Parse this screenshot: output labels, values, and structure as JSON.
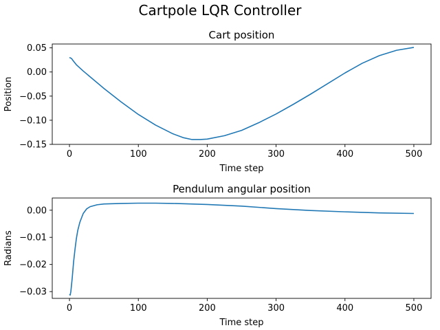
{
  "title": "Cartpole LQR Controller",
  "line_color": "#1f77b4",
  "chart_data": [
    {
      "type": "line",
      "title": "Cart position",
      "xlabel": "Time step",
      "ylabel": "Position",
      "xlim": [
        -25,
        525
      ],
      "ylim": [
        -0.15,
        0.058
      ],
      "xticks": [
        0,
        100,
        200,
        300,
        400,
        500
      ],
      "xtick_labels": [
        "0",
        "100",
        "200",
        "300",
        "400",
        "500"
      ],
      "yticks": [
        0.05,
        0.0,
        -0.05,
        -0.1,
        -0.15
      ],
      "ytick_labels": [
        "0.05",
        "0.00",
        "−0.05",
        "−0.10",
        "−0.15"
      ],
      "grid": false,
      "series": [
        {
          "x": [
            0,
            3,
            5,
            10,
            20,
            30,
            50,
            75,
            100,
            125,
            150,
            165,
            178,
            190,
            200,
            225,
            250,
            275,
            300,
            325,
            350,
            375,
            400,
            425,
            450,
            475,
            500
          ],
          "y": [
            0.03,
            0.028,
            0.024,
            0.015,
            0.002,
            -0.01,
            -0.034,
            -0.062,
            -0.088,
            -0.11,
            -0.128,
            -0.136,
            -0.14,
            -0.14,
            -0.139,
            -0.132,
            -0.121,
            -0.105,
            -0.087,
            -0.067,
            -0.046,
            -0.024,
            -0.002,
            0.018,
            0.034,
            0.045,
            0.051
          ]
        }
      ]
    },
    {
      "type": "line",
      "title": "Pendulum angular position",
      "xlabel": "Time step",
      "ylabel": "Radians",
      "xlim": [
        -25,
        525
      ],
      "ylim": [
        -0.0325,
        0.0045
      ],
      "xticks": [
        0,
        100,
        200,
        300,
        400,
        500
      ],
      "xtick_labels": [
        "0",
        "100",
        "200",
        "300",
        "400",
        "500"
      ],
      "yticks": [
        0.0,
        -0.01,
        -0.02,
        -0.03
      ],
      "ytick_labels": [
        "0.00",
        "−0.01",
        "−0.02",
        "−0.03"
      ],
      "grid": false,
      "series": [
        {
          "x": [
            0,
            1,
            2,
            4,
            6,
            8,
            10,
            12,
            15,
            18,
            20,
            25,
            30,
            40,
            50,
            75,
            100,
            125,
            150,
            200,
            250,
            300,
            350,
            400,
            450,
            500
          ],
          "y": [
            -0.031,
            -0.0313,
            -0.03,
            -0.025,
            -0.019,
            -0.0145,
            -0.0105,
            -0.0075,
            -0.0045,
            -0.0025,
            -0.0012,
            0.0005,
            0.0013,
            0.002,
            0.0023,
            0.0025,
            0.0026,
            0.0026,
            0.0025,
            0.0021,
            0.0015,
            0.0006,
            -0.0001,
            -0.0006,
            -0.001,
            -0.0012
          ]
        }
      ]
    }
  ]
}
